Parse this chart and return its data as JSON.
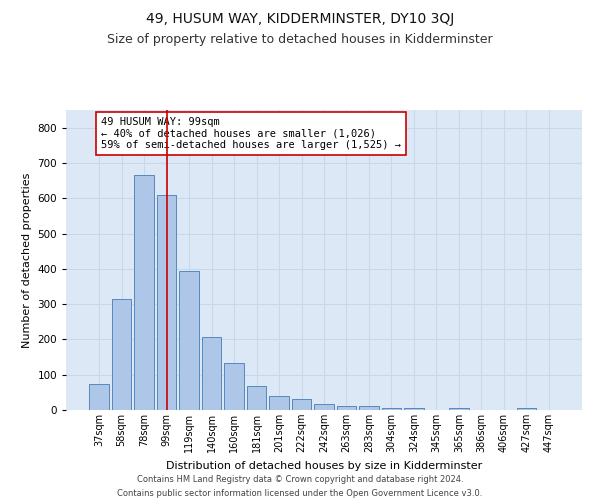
{
  "title": "49, HUSUM WAY, KIDDERMINSTER, DY10 3QJ",
  "subtitle": "Size of property relative to detached houses in Kidderminster",
  "xlabel": "Distribution of detached houses by size in Kidderminster",
  "ylabel": "Number of detached properties",
  "categories": [
    "37sqm",
    "58sqm",
    "78sqm",
    "99sqm",
    "119sqm",
    "140sqm",
    "160sqm",
    "181sqm",
    "201sqm",
    "222sqm",
    "242sqm",
    "263sqm",
    "283sqm",
    "304sqm",
    "324sqm",
    "345sqm",
    "365sqm",
    "386sqm",
    "406sqm",
    "427sqm",
    "447sqm"
  ],
  "values": [
    75,
    315,
    665,
    610,
    395,
    207,
    133,
    68,
    40,
    32,
    17,
    12,
    10,
    5,
    5,
    0,
    6,
    0,
    0,
    5,
    0
  ],
  "bar_color": "#aec6e8",
  "bar_edge_color": "#5588bb",
  "red_line_index": 3,
  "annotation_text": "49 HUSUM WAY: 99sqm\n← 40% of detached houses are smaller (1,026)\n59% of semi-detached houses are larger (1,525) →",
  "annotation_box_color": "#ffffff",
  "annotation_box_edge_color": "#cc0000",
  "grid_color": "#c8d8ea",
  "background_color": "#dce8f5",
  "footer_line1": "Contains HM Land Registry data © Crown copyright and database right 2024.",
  "footer_line2": "Contains public sector information licensed under the Open Government Licence v3.0.",
  "ylim": [
    0,
    850
  ],
  "yticks": [
    0,
    100,
    200,
    300,
    400,
    500,
    600,
    700,
    800
  ],
  "title_fontsize": 10,
  "subtitle_fontsize": 9,
  "tick_fontsize": 7,
  "ylabel_fontsize": 8,
  "xlabel_fontsize": 8,
  "footer_fontsize": 6,
  "ann_fontsize": 7.5
}
